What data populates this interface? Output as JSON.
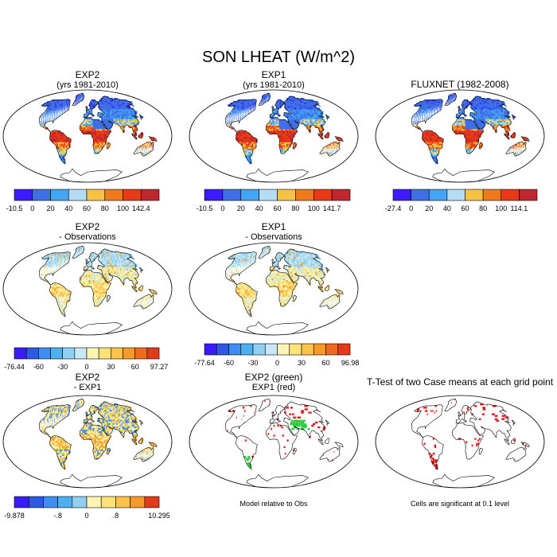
{
  "page": {
    "title": "SON LHEAT (W/m^2)"
  },
  "colors": {
    "ocean": "#ffffff",
    "land_outline": "#000000",
    "sig_red": "#e41a1c",
    "sig_green": "#2ecc40"
  },
  "chart_data": [
    {
      "type": "heatmap",
      "id": "exp2",
      "title": "EXP2",
      "subtitle": "(yrs 1981-2010)",
      "colorbar_labels": [
        "-10.5",
        "0",
        "20",
        "40",
        "60",
        "80",
        "100",
        "142.4"
      ],
      "colorbar_colors": [
        "#3b1cff",
        "#3f6fe6",
        "#42a5f5",
        "#b3dcf5",
        "#f5c242",
        "#f07a1a",
        "#e83a16",
        "#c0272d"
      ],
      "field": "climatology"
    },
    {
      "type": "heatmap",
      "id": "exp1",
      "title": "EXP1",
      "subtitle": "(yrs 1981-2010)",
      "colorbar_labels": [
        "-10.5",
        "0",
        "20",
        "40",
        "60",
        "80",
        "100",
        "141.7"
      ],
      "colorbar_colors": [
        "#3b1cff",
        "#3f6fe6",
        "#42a5f5",
        "#b3dcf5",
        "#f5c242",
        "#f07a1a",
        "#e83a16",
        "#c0272d"
      ],
      "field": "climatology"
    },
    {
      "type": "heatmap",
      "id": "fluxnet",
      "title": "FLUXNET (1982-2008)",
      "subtitle": "",
      "colorbar_labels": [
        "-27.4",
        "0",
        "20",
        "40",
        "60",
        "80",
        "100",
        "114.1"
      ],
      "colorbar_colors": [
        "#3b1cff",
        "#3f6fe6",
        "#42a5f5",
        "#b3dcf5",
        "#f5c242",
        "#f07a1a",
        "#e83a16",
        "#c0272d"
      ],
      "field": "climatology"
    },
    {
      "type": "heatmap",
      "id": "exp2_obs",
      "title": "EXP2",
      "subtitle": "- Observations",
      "colorbar_labels": [
        "-76.44",
        "-60",
        "-30",
        "0",
        "30",
        "60",
        "97.27"
      ],
      "colorbar_ticks": [
        0,
        2,
        4,
        6,
        8,
        10,
        12
      ],
      "colorbar_colors": [
        "#3b1cff",
        "#2d5ae0",
        "#3f8ff0",
        "#4fb0f0",
        "#8fd0f2",
        "#c8e8f5",
        "#fbf5b5",
        "#fde27a",
        "#fcc24a",
        "#f79a2a",
        "#ef6a1e",
        "#e23a1a"
      ],
      "field": "difference"
    },
    {
      "type": "heatmap",
      "id": "exp1_obs",
      "title": "EXP1",
      "subtitle": "- Observations",
      "colorbar_labels": [
        "-77.64",
        "-60",
        "-30",
        "0",
        "30",
        "60",
        "96.98"
      ],
      "colorbar_ticks": [
        0,
        2,
        4,
        6,
        8,
        10,
        12
      ],
      "colorbar_colors": [
        "#3b1cff",
        "#2d5ae0",
        "#3f8ff0",
        "#4fb0f0",
        "#8fd0f2",
        "#c8e8f5",
        "#fbf5b5",
        "#fde27a",
        "#fcc24a",
        "#f79a2a",
        "#ef6a1e",
        "#e23a1a"
      ],
      "field": "difference"
    },
    {
      "type": "heatmap",
      "id": "exp2_exp1",
      "title": "EXP2",
      "subtitle": "- EXP1",
      "colorbar_labels": [
        "-9.878",
        "-.8",
        "0",
        ".8",
        "10.295"
      ],
      "colorbar_ticks": [
        0,
        3,
        5,
        7,
        10
      ],
      "colorbar_colors": [
        "#3b1cff",
        "#2d5ae0",
        "#3f8ff0",
        "#4fb0f0",
        "#8fd0f2",
        "#fbf5b5",
        "#fde27a",
        "#fcc24a",
        "#f79a2a",
        "#e23a1a"
      ],
      "field": "model-difference"
    },
    {
      "type": "heatmap",
      "id": "model_rel_obs",
      "title": "EXP2 (green)",
      "subtitle": "EXP1 (red)",
      "footer": "Model relative to Obs",
      "field": "stipple-mixed"
    },
    {
      "type": "heatmap",
      "id": "ttest",
      "title": "T-Test of two Case means at each grid point",
      "subtitle": "",
      "footer": "Cells are significant at 0.1 level",
      "field": "stipple-red"
    }
  ]
}
